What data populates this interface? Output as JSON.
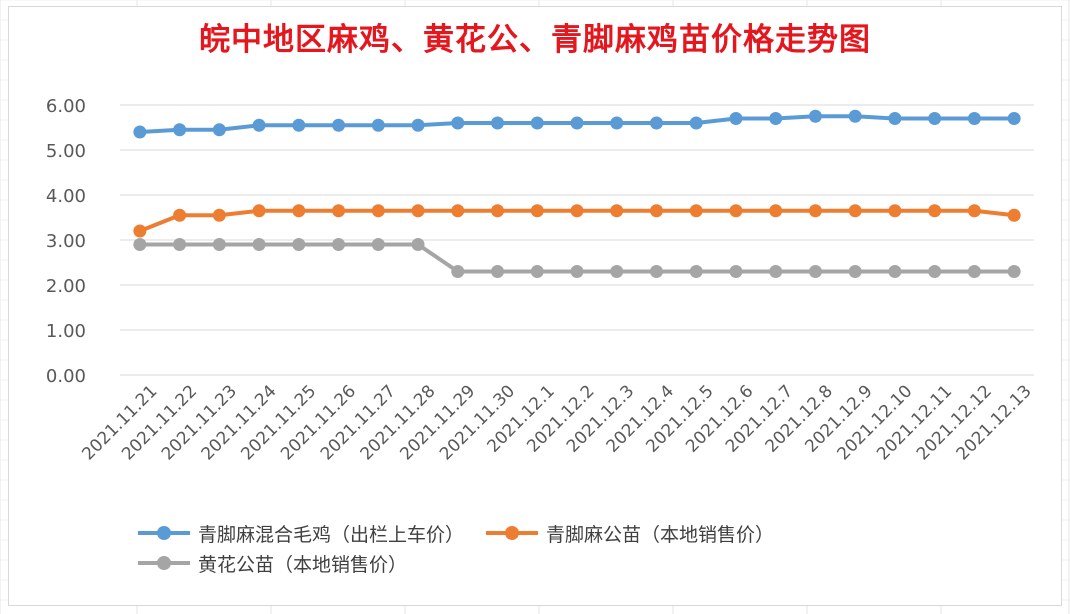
{
  "chart_data": {
    "type": "line",
    "title": "皖中地区麻鸡、黄花公、青脚麻鸡苗价格走势图",
    "xlabel": "",
    "ylabel": "",
    "ylim": [
      0,
      6
    ],
    "yticks": [
      "0.00",
      "1.00",
      "2.00",
      "3.00",
      "4.00",
      "5.00",
      "6.00"
    ],
    "grid": true,
    "legend_position": "bottom",
    "categories": [
      "2021.11.21",
      "2021.11.22",
      "2021.11.23",
      "2021.11.24",
      "2021.11.25",
      "2021.11.26",
      "2021.11.27",
      "2021.11.28",
      "2021.11.29",
      "2021.11.30",
      "2021.12.1",
      "2021.12.2",
      "2021.12.3",
      "2021.12.4",
      "2021.12.5",
      "2021.12.6",
      "2021.12.7",
      "2021.12.8",
      "2021.12.9",
      "2021.12.10",
      "2021.12.11",
      "2021.12.12",
      "2021.12.13"
    ],
    "series": [
      {
        "name": "青脚麻混合毛鸡（出栏上车价）",
        "color": "#5b9bd5",
        "values": [
          5.4,
          5.45,
          5.45,
          5.55,
          5.55,
          5.55,
          5.55,
          5.55,
          5.6,
          5.6,
          5.6,
          5.6,
          5.6,
          5.6,
          5.6,
          5.7,
          5.7,
          5.75,
          5.75,
          5.7,
          5.7,
          5.7,
          5.7
        ]
      },
      {
        "name": "青脚麻公苗（本地销售价）",
        "color": "#ed7d31",
        "values": [
          3.2,
          3.55,
          3.55,
          3.65,
          3.65,
          3.65,
          3.65,
          3.65,
          3.65,
          3.65,
          3.65,
          3.65,
          3.65,
          3.65,
          3.65,
          3.65,
          3.65,
          3.65,
          3.65,
          3.65,
          3.65,
          3.65,
          3.55
        ]
      },
      {
        "name": "黄花公苗（本地销售价）",
        "color": "#a5a5a5",
        "values": [
          2.9,
          2.9,
          2.9,
          2.9,
          2.9,
          2.9,
          2.9,
          2.9,
          2.3,
          2.3,
          2.3,
          2.3,
          2.3,
          2.3,
          2.3,
          2.3,
          2.3,
          2.3,
          2.3,
          2.3,
          2.3,
          2.3,
          2.3
        ]
      }
    ]
  }
}
